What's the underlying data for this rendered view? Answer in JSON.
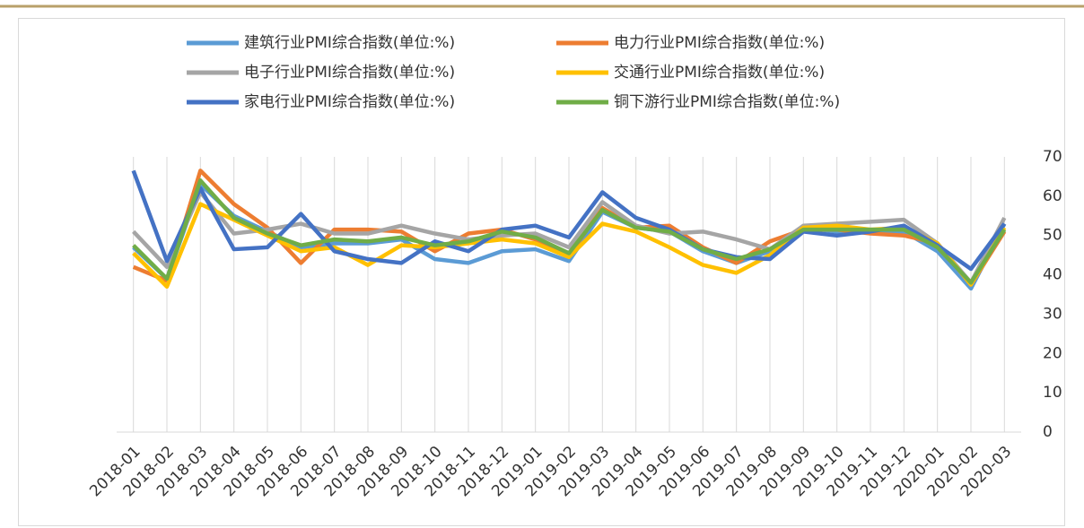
{
  "chart_data": {
    "type": "line",
    "categories": [
      "2018-01",
      "2018-02",
      "2018-03",
      "2018-04",
      "2018-05",
      "2018-06",
      "2018-07",
      "2018-08",
      "2018-09",
      "2018-10",
      "2018-11",
      "2018-12",
      "2019-01",
      "2019-02",
      "2019-03",
      "2019-04",
      "2019-05",
      "2019-06",
      "2019-07",
      "2019-08",
      "2019-09",
      "2019-10",
      "2019-11",
      "2019-12",
      "2020-01",
      "2020-02",
      "2020-03"
    ],
    "series": [
      {
        "name": "建筑行业PMI综合指数(单位:%)",
        "color": "#5b9bd5",
        "values": [
          47,
          39,
          63,
          55,
          51,
          47,
          48,
          48,
          49,
          44,
          43,
          46,
          46.5,
          43.5,
          56,
          52,
          51,
          46,
          43,
          46,
          52,
          51,
          51,
          51,
          46,
          36.5,
          53
        ]
      },
      {
        "name": "电力行业PMI综合指数(单位:%)",
        "color": "#ed7d31",
        "values": [
          42,
          38.5,
          66.5,
          58,
          52,
          43,
          51.5,
          51.5,
          51,
          46,
          50.5,
          51.5,
          49,
          45,
          57,
          52,
          52.5,
          47,
          43,
          48.5,
          51.5,
          51.5,
          50.5,
          50,
          48,
          37.5,
          51
        ]
      },
      {
        "name": "电子行业PMI综合指数(单位:%)",
        "color": "#a5a5a5",
        "values": [
          51,
          42,
          61,
          50.5,
          51.5,
          53,
          50.5,
          50.5,
          52.5,
          50.5,
          49,
          50,
          50.5,
          47,
          58.5,
          52.5,
          50.5,
          51,
          49,
          46.5,
          52.5,
          53,
          53.5,
          54,
          48,
          38,
          54.5
        ]
      },
      {
        "name": "交通行业PMI综合指数(单位:%)",
        "color": "#ffc000",
        "values": [
          45.5,
          37,
          58,
          54,
          50,
          46,
          47,
          42.5,
          47.5,
          47,
          48,
          49,
          48,
          44.5,
          53,
          51,
          47,
          42.5,
          40.5,
          45,
          52,
          52.5,
          51.5,
          52,
          48,
          37.5,
          52
        ]
      },
      {
        "name": "家电行业PMI综合指数(单位:%)",
        "color": "#4472c4",
        "values": [
          66.5,
          43.5,
          62,
          46.5,
          47,
          55.5,
          46,
          44,
          43,
          48.5,
          46,
          51.5,
          52.5,
          49.5,
          61,
          54.5,
          51.5,
          46.5,
          44.5,
          44,
          51,
          50,
          51,
          52.5,
          47.5,
          41.5,
          53
        ]
      },
      {
        "name": "铜下游行业PMI综合指数(单位:%)",
        "color": "#70ad47",
        "values": [
          47.5,
          39,
          64,
          54.5,
          50.5,
          47.5,
          49,
          48.5,
          49.5,
          47.5,
          48.5,
          51,
          49.5,
          45.5,
          56.5,
          52,
          51,
          46.5,
          44,
          46.5,
          51.5,
          51.5,
          51.5,
          51.5,
          47,
          38,
          51.5
        ]
      }
    ],
    "ylim": [
      0,
      70
    ],
    "yticks": [
      0,
      10,
      20,
      30,
      40,
      50,
      60,
      70
    ],
    "grid": true,
    "legend": "top"
  }
}
